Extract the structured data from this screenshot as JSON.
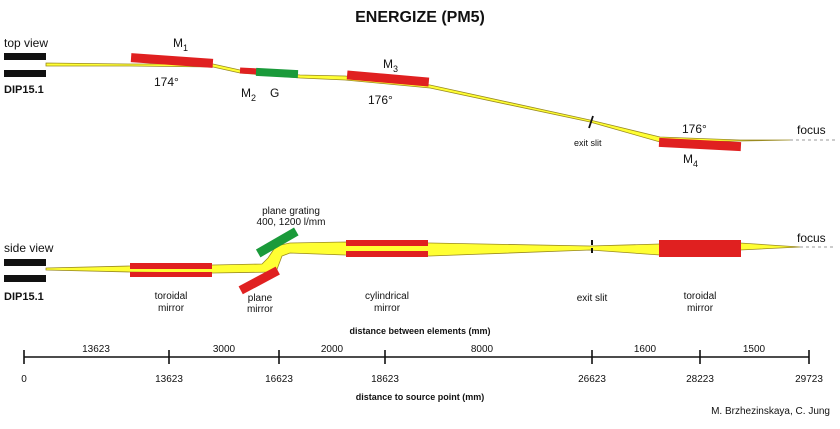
{
  "title": "ENERGIZE (PM5)",
  "top_view": {
    "label": "top view",
    "source": "DIP15.1",
    "m1": {
      "name": "M",
      "sub": "1",
      "angle": "174°"
    },
    "m2": {
      "name": "M",
      "sub": "2"
    },
    "grating": "G",
    "m3": {
      "name": "M",
      "sub": "3",
      "angle": "176°"
    },
    "exit_slit": "exit slit",
    "m4": {
      "name": "M",
      "sub": "4",
      "angle": "176°"
    },
    "focus": "focus"
  },
  "side_view": {
    "label": "side view",
    "source": "DIP15.1",
    "grating_line1": "plane grating",
    "grating_line2": "400, 1200 l/mm",
    "toroidal1_line1": "toroidal",
    "toroidal1_line2": "mirror",
    "plane_line1": "plane",
    "plane_line2": "mirror",
    "cyl_line1": "cylindrical",
    "cyl_line2": "mirror",
    "exit_slit": "exit slit",
    "toroidal2_line1": "toroidal",
    "toroidal2_line2": "mirror",
    "focus": "focus"
  },
  "scale": {
    "between_title": "distance between elements (mm)",
    "source_title": "distance to source point (mm)",
    "between": [
      "13623",
      "3000",
      "2000",
      "8000",
      "1600",
      "1500"
    ],
    "positions": [
      "0",
      "13623",
      "16623",
      "18623",
      "26623",
      "28223",
      "29723"
    ]
  },
  "credit": "M. Brzhezinskaya, C. Jung",
  "colors": {
    "mirror": "#e02020",
    "grating": "#1a9a3a",
    "beam": "#ffff33",
    "beam_edge": "#9a8a20",
    "source": "#111111"
  }
}
